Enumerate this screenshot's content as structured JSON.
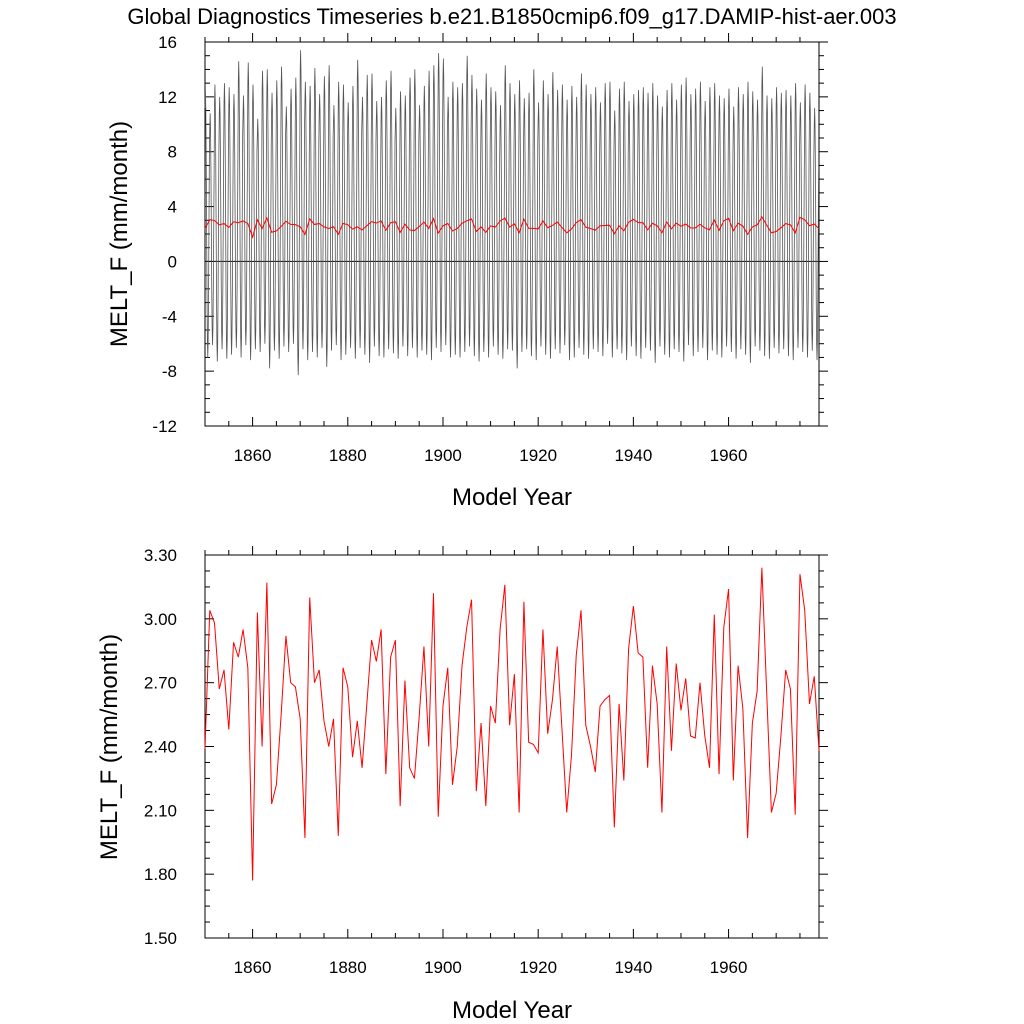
{
  "title": "Global Diagnostics Timeseries b.e21.B1850cmip6.f09_g17.DAMIP-hist-aer.003",
  "chart_data": [
    {
      "type": "line",
      "xlabel": "Model Year",
      "ylabel": "MELT_F (mm/month)",
      "xlim": [
        1850,
        1979
      ],
      "ylim": [
        -12,
        16
      ],
      "xticks": [
        "1860",
        "1880",
        "1900",
        "1920",
        "1940",
        "1960"
      ],
      "yticks": [
        "-12",
        "-8",
        "-4",
        "0",
        "4",
        "8",
        "12",
        "16"
      ],
      "zero_line": true,
      "series": [
        {
          "color": "#555555",
          "resolution": "monthly",
          "annual_peaks": [
            12.5,
            10.8,
            12.9,
            12.0,
            13.0,
            12.7,
            12.2,
            14.6,
            12.1,
            14.5,
            12.9,
            10.4,
            13.9,
            14.0,
            12.3,
            13.2,
            14.2,
            11.3,
            12.6,
            13.4,
            15.4,
            13.1,
            12.8,
            14.1,
            12.2,
            13.5,
            14.3,
            11.4,
            13.1,
            12.9,
            11.6,
            12.8,
            14.7,
            12.0,
            13.6,
            13.7,
            11.7,
            12.0,
            13.2,
            13.9,
            11.2,
            12.4,
            12.1,
            13.4,
            14.0,
            11.4,
            12.8,
            13.9,
            14.3,
            15.2,
            14.8,
            12.0,
            13.1,
            12.7,
            13.0,
            15.0,
            13.6,
            12.6,
            11.8,
            13.7,
            12.7,
            12.4,
            11.4,
            14.3,
            13.0,
            12.2,
            13.2,
            11.9,
            12.3,
            14.0,
            11.6,
            13.2,
            12.2,
            13.8,
            12.5,
            12.9,
            11.8,
            12.8,
            12.0,
            13.7,
            12.9,
            12.2,
            12.7,
            11.6,
            13.0,
            13.1,
            11.0,
            12.6,
            13.1,
            11.7,
            12.2,
            12.5,
            12.7,
            12.3,
            13.0,
            12.1,
            11.3,
            12.5,
            13.0,
            11.8,
            12.9,
            13.4,
            12.2,
            12.6,
            13.1,
            11.7,
            12.7,
            13.0,
            12.1,
            11.9,
            12.6,
            11.3,
            12.7,
            12.2,
            13.1,
            12.4,
            11.8,
            14.2,
            12.1,
            11.9,
            12.7,
            12.3,
            12.5,
            12.1,
            13.0,
            11.6,
            12.9,
            12.3,
            11.2
          ],
          "annual_troughs": [
            -7.0,
            -6.1,
            -7.3,
            -6.4,
            -7.1,
            -6.8,
            -6.3,
            -7.0,
            -6.1,
            -7.2,
            -6.4,
            -6.6,
            -6.0,
            -7.8,
            -6.5,
            -7.1,
            -6.2,
            -6.6,
            -6.0,
            -8.3,
            -6.4,
            -7.2,
            -6.6,
            -7.0,
            -6.3,
            -7.7,
            -6.5,
            -6.1,
            -7.2,
            -6.8,
            -6.3,
            -7.1,
            -6.3,
            -6.8,
            -7.4,
            -6.2,
            -6.9,
            -7.0,
            -6.4,
            -6.7,
            -7.1,
            -6.2,
            -6.9,
            -6.3,
            -7.0,
            -6.5,
            -6.8,
            -7.2,
            -6.3,
            -6.6,
            -6.1,
            -7.0,
            -6.8,
            -7.0,
            -6.6,
            -6.2,
            -6.9,
            -7.3,
            -6.6,
            -7.0,
            -6.2,
            -6.8,
            -7.1,
            -6.4,
            -6.5,
            -7.8,
            -6.6,
            -6.4,
            -6.9,
            -7.2,
            -6.2,
            -6.8,
            -7.1,
            -6.4,
            -6.7,
            -6.1,
            -7.2,
            -7.0,
            -6.3,
            -6.8,
            -7.1,
            -6.4,
            -6.6,
            -6.9,
            -6.0,
            -7.0,
            -6.4,
            -6.7,
            -7.2,
            -6.2,
            -6.9,
            -7.1,
            -6.3,
            -6.5,
            -7.4,
            -6.2,
            -6.8,
            -7.0,
            -6.4,
            -6.6,
            -7.3,
            -6.1,
            -6.9,
            -6.6,
            -6.3,
            -7.2,
            -6.5,
            -6.8,
            -7.0,
            -6.2,
            -6.6,
            -7.1,
            -6.4,
            -6.8,
            -7.4,
            -6.2,
            -6.5,
            -6.9,
            -7.1,
            -6.3,
            -6.7,
            -6.4,
            -6.9,
            -7.2,
            -6.3,
            -6.6,
            -7.0,
            -6.5,
            -7.2
          ]
        },
        {
          "color": "#ff0000",
          "resolution": "annual",
          "values_ref": "chart_data.1.series.0.values"
        }
      ]
    },
    {
      "type": "line",
      "xlabel": "Model Year",
      "ylabel": "MELT_F (mm/month)",
      "xlim": [
        1850,
        1979
      ],
      "ylim": [
        1.5,
        3.3
      ],
      "xticks": [
        "1860",
        "1880",
        "1900",
        "1920",
        "1940",
        "1960"
      ],
      "yticks": [
        "1.50",
        "1.80",
        "2.10",
        "2.40",
        "2.70",
        "3.00",
        "3.30"
      ],
      "series": [
        {
          "color": "#ff0000",
          "x_start": 1850,
          "values": [
            2.39,
            3.04,
            2.98,
            2.67,
            2.76,
            2.48,
            2.89,
            2.82,
            2.95,
            2.77,
            1.77,
            3.03,
            2.4,
            3.17,
            2.13,
            2.22,
            2.55,
            2.92,
            2.7,
            2.68,
            2.53,
            1.97,
            3.1,
            2.7,
            2.76,
            2.52,
            2.4,
            2.53,
            1.98,
            2.77,
            2.68,
            2.35,
            2.52,
            2.3,
            2.6,
            2.9,
            2.8,
            2.95,
            2.27,
            2.82,
            2.9,
            2.12,
            2.71,
            2.3,
            2.25,
            2.54,
            2.87,
            2.4,
            3.12,
            2.07,
            2.59,
            2.77,
            2.22,
            2.4,
            2.78,
            2.96,
            3.09,
            2.19,
            2.51,
            2.12,
            2.59,
            2.51,
            2.95,
            3.16,
            2.5,
            2.74,
            2.09,
            3.08,
            2.42,
            2.41,
            2.37,
            2.95,
            2.46,
            2.62,
            2.87,
            2.48,
            2.09,
            2.36,
            2.83,
            3.04,
            2.5,
            2.4,
            2.28,
            2.59,
            2.62,
            2.64,
            2.02,
            2.6,
            2.24,
            2.86,
            3.06,
            2.84,
            2.82,
            2.3,
            2.78,
            2.6,
            2.09,
            2.87,
            2.38,
            2.79,
            2.57,
            2.72,
            2.45,
            2.44,
            2.7,
            2.45,
            2.3,
            3.02,
            2.27,
            2.96,
            3.14,
            2.24,
            2.78,
            2.58,
            1.97,
            2.51,
            2.66,
            3.24,
            2.66,
            2.09,
            2.18,
            2.45,
            2.76,
            2.67,
            2.08,
            3.21,
            3.04,
            2.6,
            2.73,
            2.38
          ]
        }
      ]
    }
  ]
}
